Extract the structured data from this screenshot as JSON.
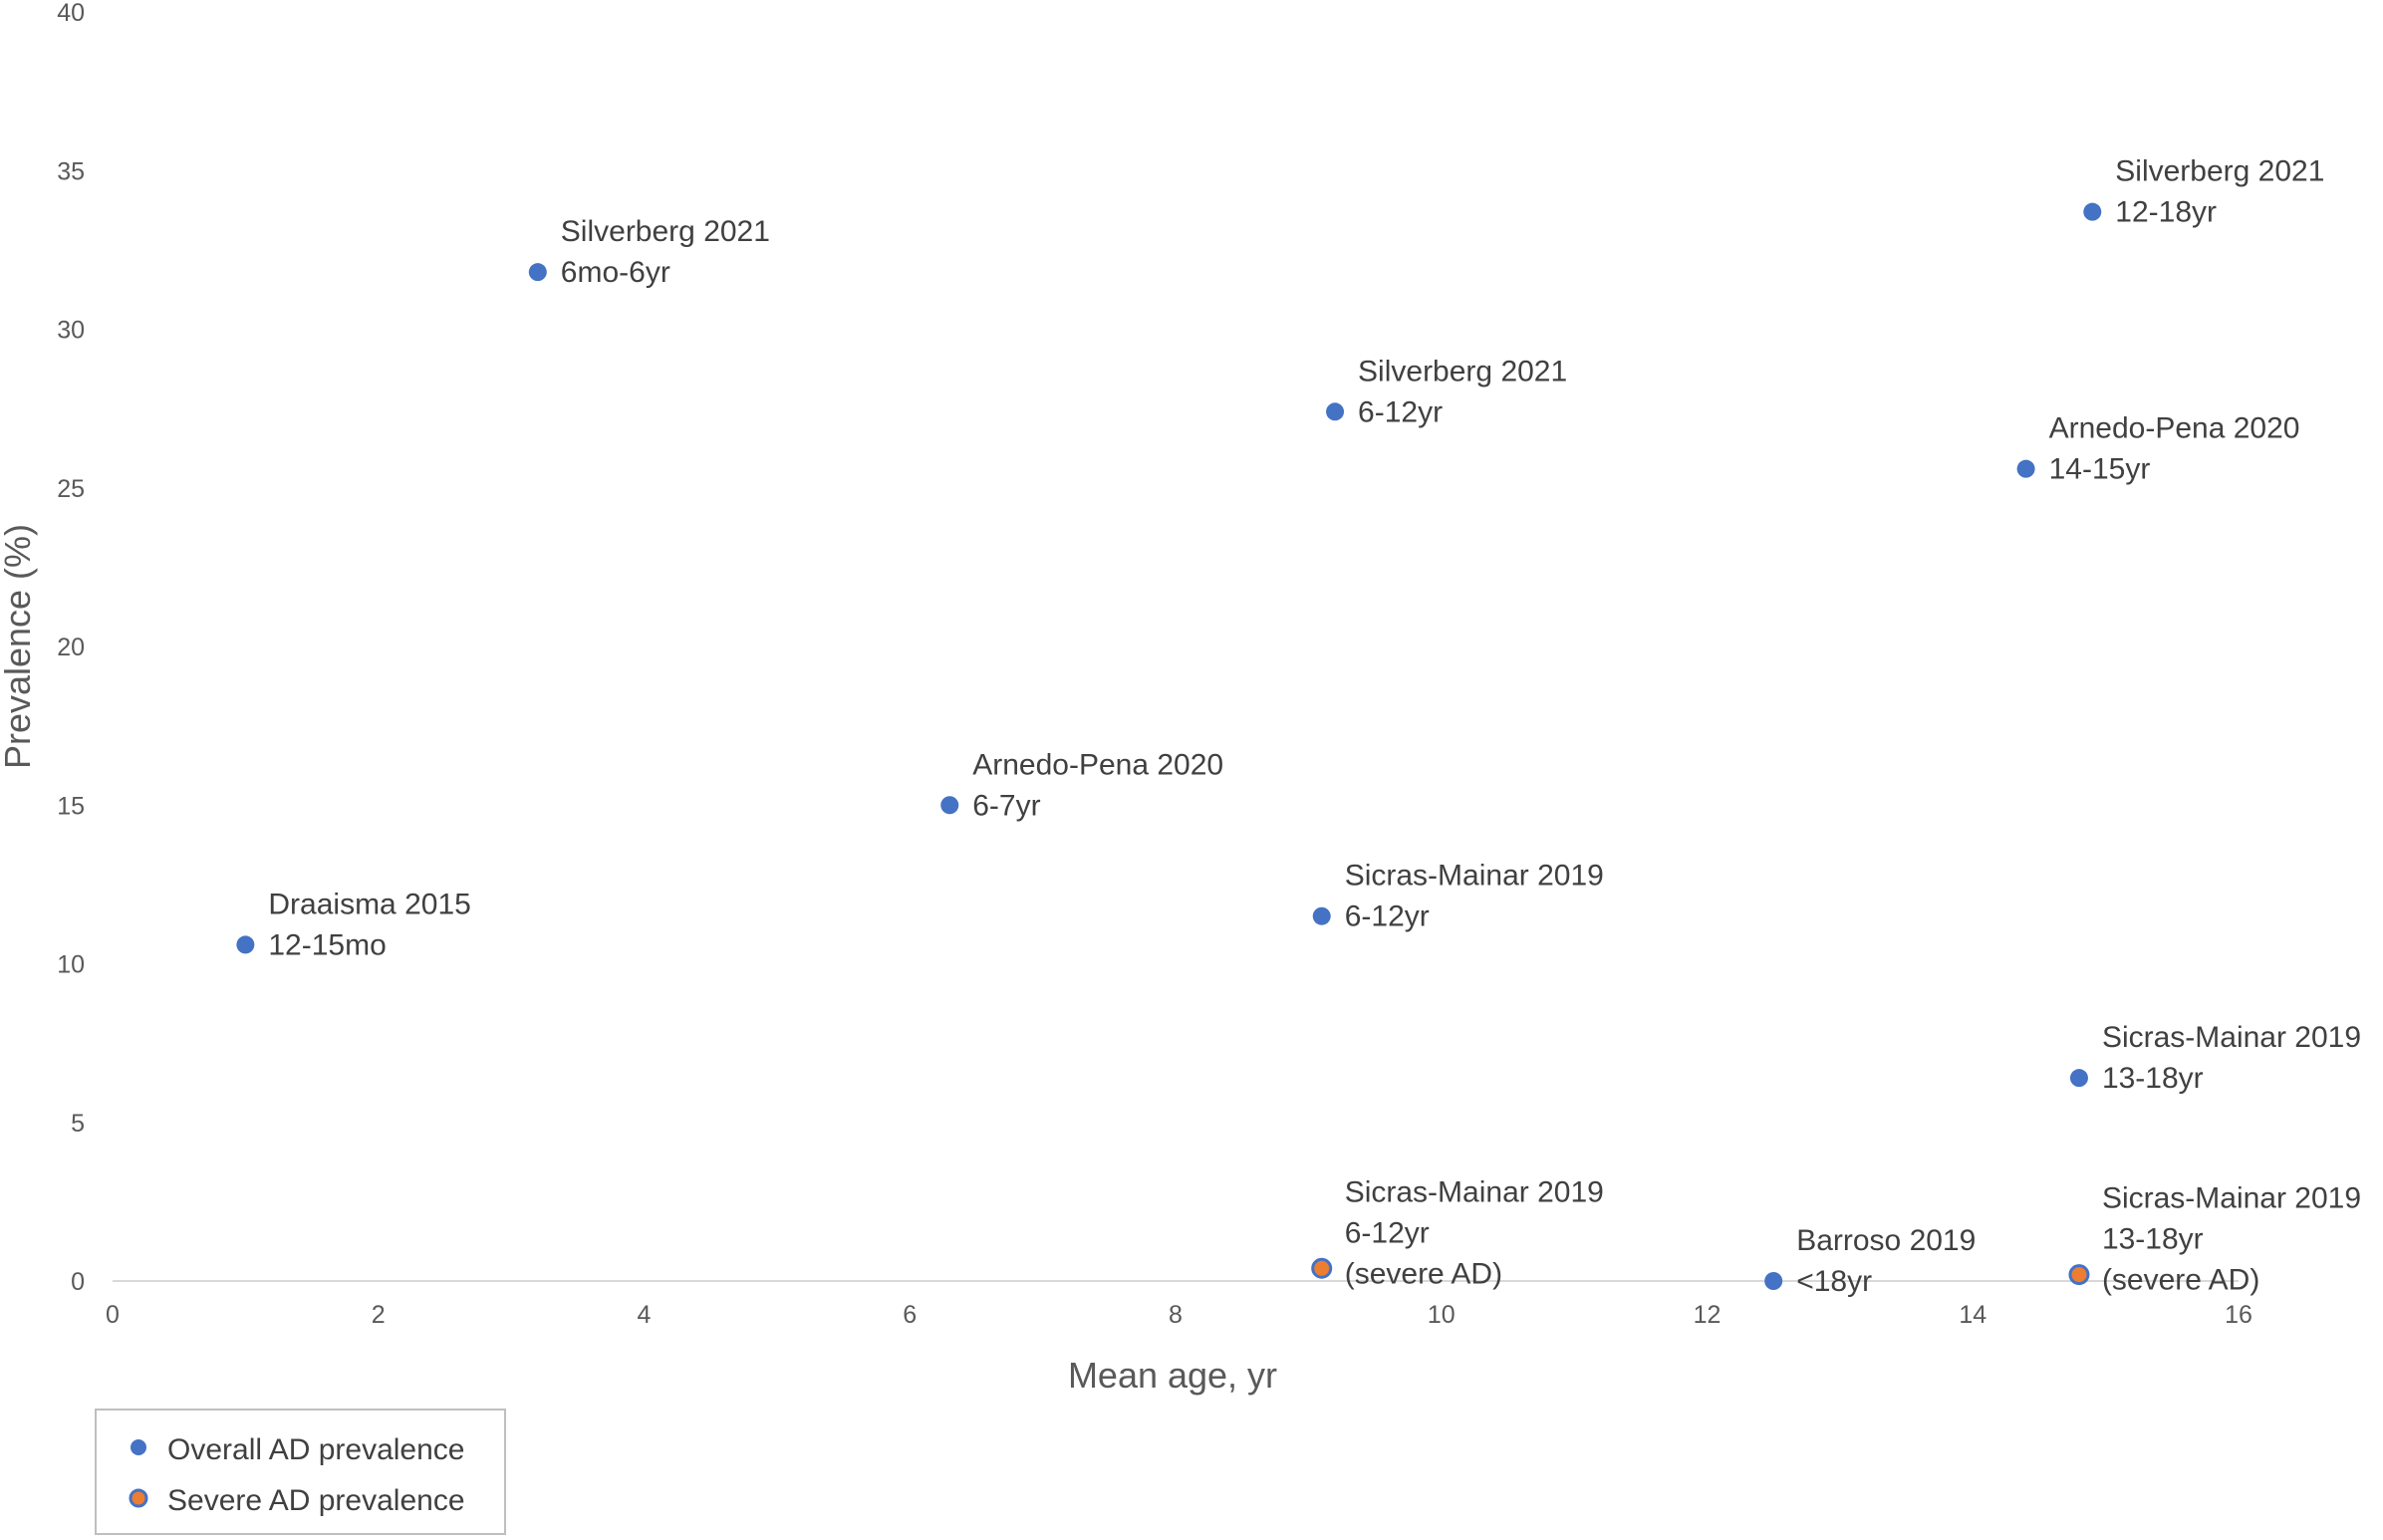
{
  "chart_data": {
    "type": "scatter",
    "title": "",
    "xlabel": "Mean age, yr",
    "ylabel": "Prevalence (%)",
    "xlim": [
      0,
      16
    ],
    "ylim": [
      0,
      40
    ],
    "xticks": [
      "0",
      "2",
      "4",
      "6",
      "8",
      "10",
      "12",
      "14",
      "16"
    ],
    "yticks": [
      "0",
      "5",
      "10",
      "15",
      "20",
      "25",
      "30",
      "35",
      "40"
    ],
    "grid": false,
    "legend_position": "bottom-left",
    "colors": {
      "overall": "#4472C4",
      "severe": "#ED7D31",
      "severe_edge": "#4472C4"
    },
    "series": [
      {
        "name": "Overall AD prevalence",
        "points": [
          {
            "x": 1.0,
            "y": 10.6,
            "label": [
              "Draaisma 2015",
              "12-15mo"
            ]
          },
          {
            "x": 3.2,
            "y": 31.8,
            "label": [
              "Silverberg 2021",
              "6mo-6yr"
            ]
          },
          {
            "x": 6.3,
            "y": 15.0,
            "label": [
              "Arnedo-Pena 2020",
              "6-7yr"
            ]
          },
          {
            "x": 9.2,
            "y": 27.4,
            "label": [
              "Silverberg 2021",
              "6-12yr"
            ]
          },
          {
            "x": 9.1,
            "y": 11.5,
            "label": [
              "Sicras-Mainar 2019",
              "6-12yr"
            ]
          },
          {
            "x": 12.5,
            "y": 0.0,
            "label": [
              "Barroso 2019",
              "<18yr"
            ]
          },
          {
            "x": 14.4,
            "y": 25.6,
            "label": [
              "Arnedo-Pena 2020",
              "14-15yr"
            ]
          },
          {
            "x": 14.9,
            "y": 33.7,
            "label": [
              "Silverberg 2021",
              "12-18yr"
            ]
          },
          {
            "x": 14.8,
            "y": 6.4,
            "label": [
              "Sicras-Mainar 2019",
              "13-18yr"
            ]
          }
        ]
      },
      {
        "name": "Severe AD prevalence",
        "points": [
          {
            "x": 9.1,
            "y": 0.4,
            "label": [
              "Sicras-Mainar 2019",
              "6-12yr",
              "(severe AD)"
            ]
          },
          {
            "x": 14.8,
            "y": 0.2,
            "label": [
              "Sicras-Mainar 2019",
              "13-18yr",
              "(severe AD)"
            ]
          }
        ]
      }
    ]
  }
}
